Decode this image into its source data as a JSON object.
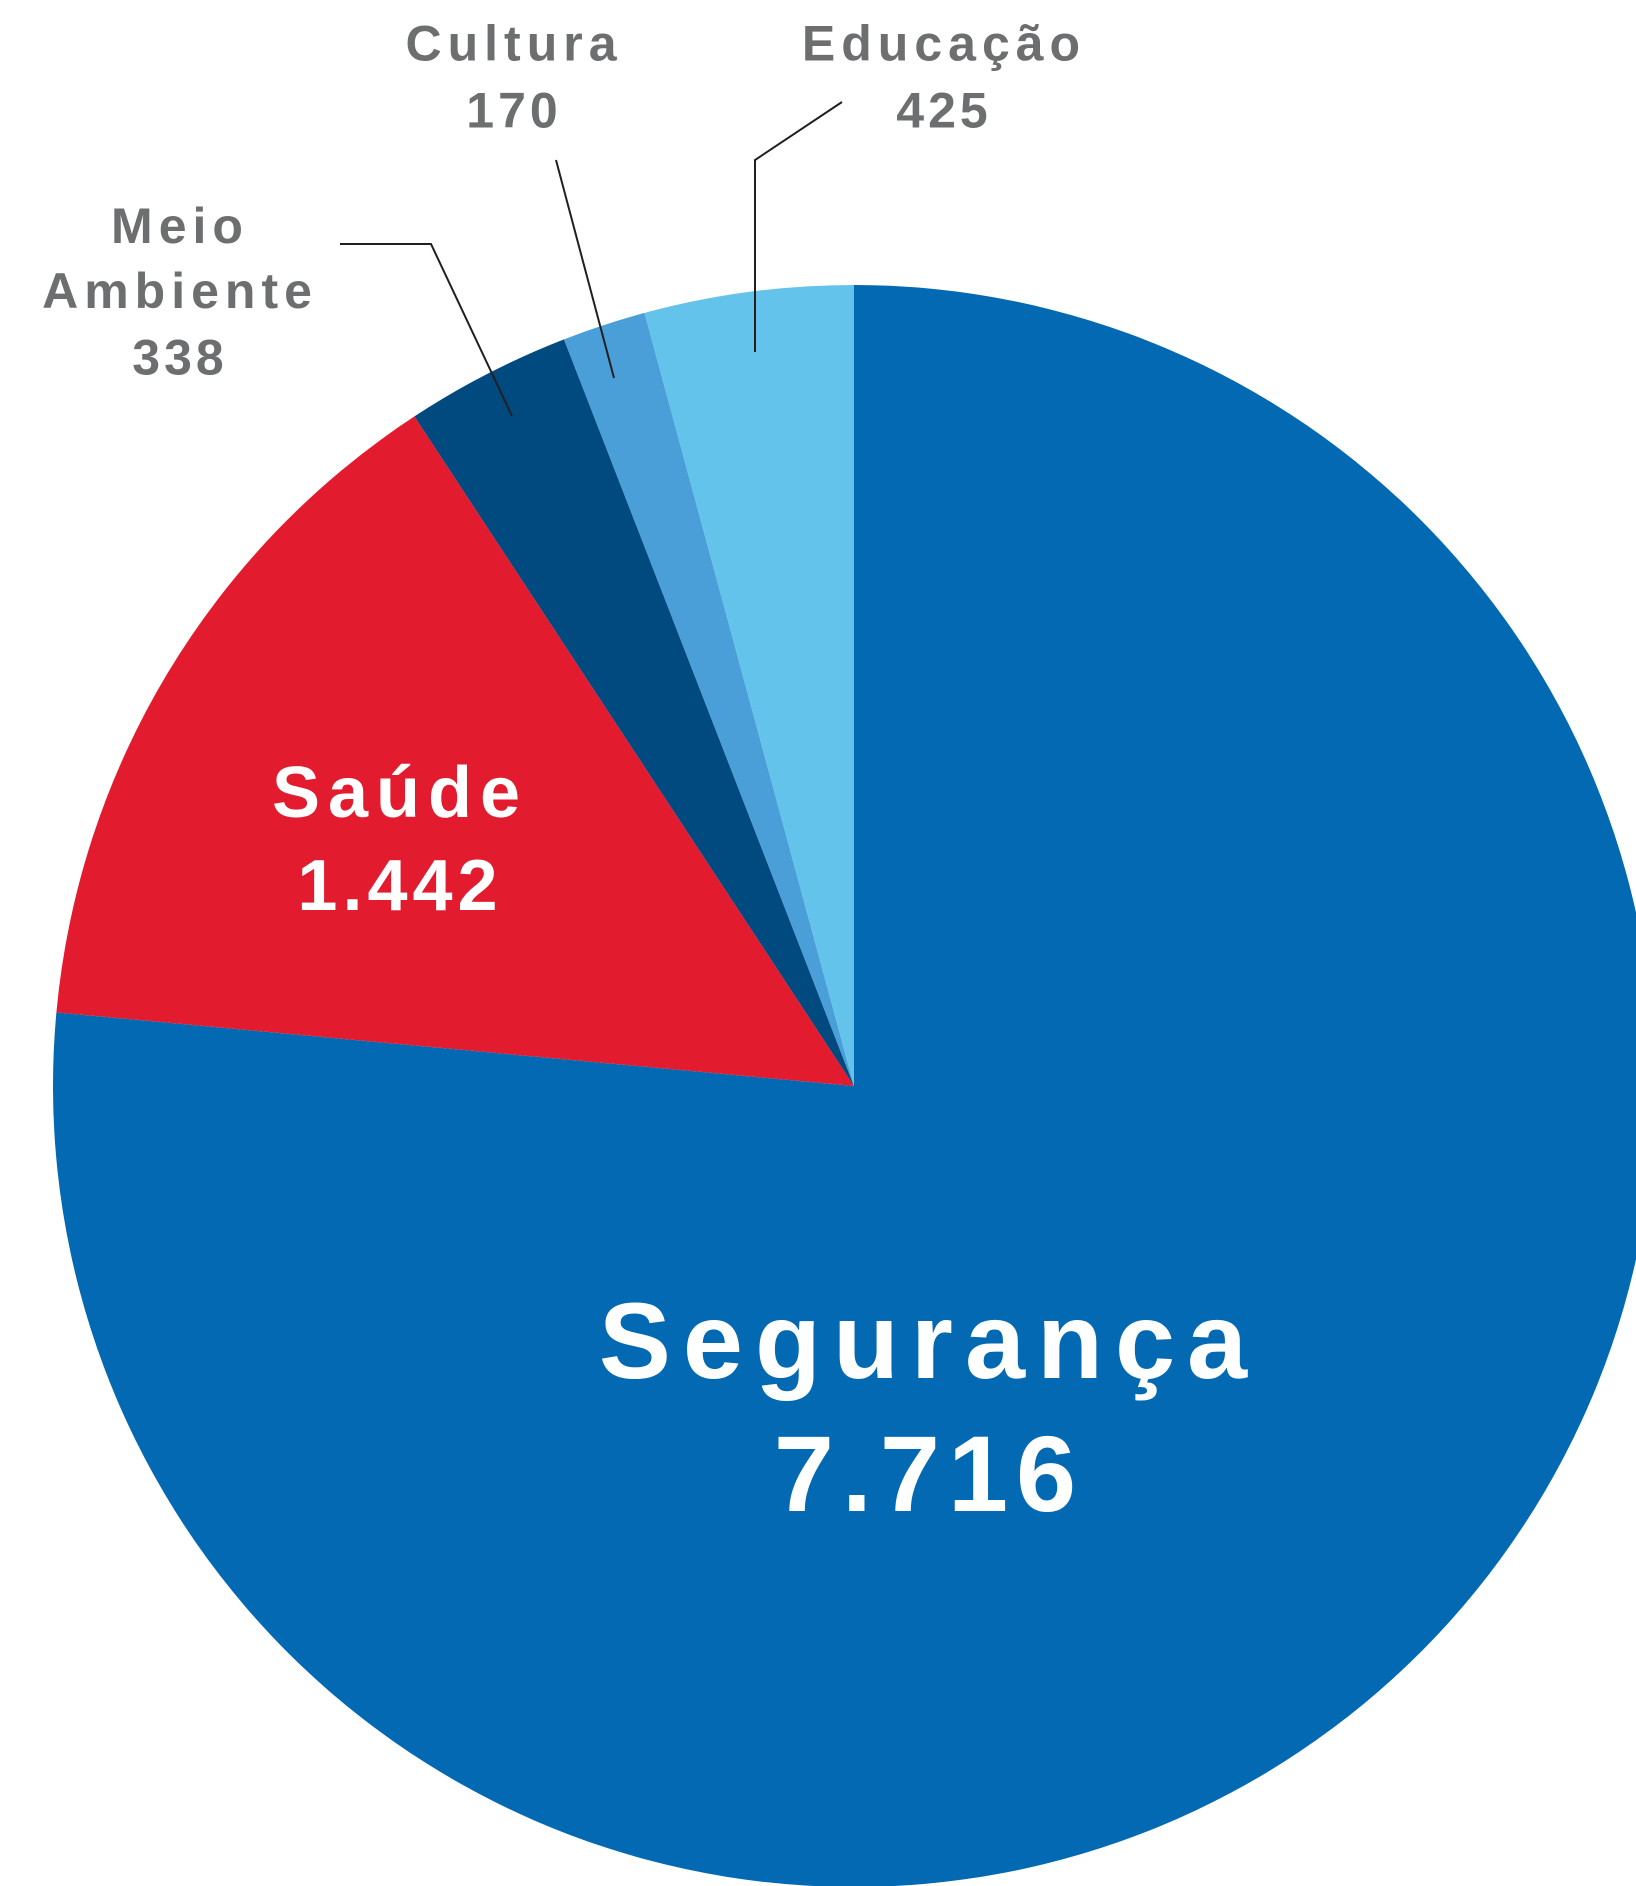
{
  "chart_data": {
    "type": "pie",
    "categories": [
      "Segurança",
      "Saúde",
      "Meio Ambiente",
      "Cultura",
      "Educação"
    ],
    "values": [
      7716,
      1442,
      338,
      170,
      425
    ],
    "value_labels": [
      "7.716",
      "1.442",
      "338",
      "170",
      "425"
    ],
    "colors": [
      "#0369b3",
      "#e31b2e",
      "#004a80",
      "#4a9fd8",
      "#64c3eb"
    ]
  }
}
